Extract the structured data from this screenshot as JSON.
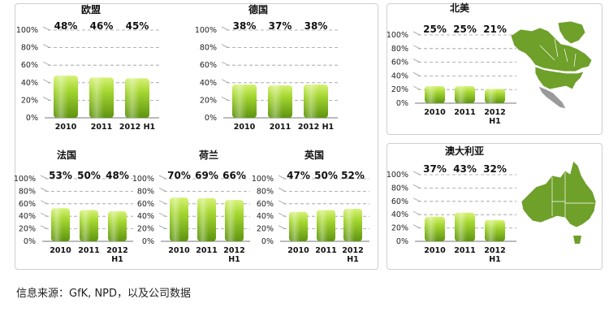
{
  "colors": {
    "bar_top": "#c8ec5a",
    "bar_mid": "#8cc21e",
    "bar_bottom": "#5a8f0c",
    "grid": "#9a9a9a",
    "map_fill": "#6ea02a",
    "map_gray": "#9a9a9a"
  },
  "chart_data": [
    {
      "type": "bar",
      "title": "欧盟",
      "categories": [
        "2010",
        "2011",
        "2012 H1"
      ],
      "values": [
        48,
        46,
        45
      ],
      "value_labels": [
        "48%",
        "46%",
        "45%"
      ],
      "yticks": [
        "0%",
        "20%",
        "40%",
        "60%",
        "80%",
        "100%"
      ],
      "ylim": [
        0,
        100
      ],
      "grid": true
    },
    {
      "type": "bar",
      "title": "德国",
      "categories": [
        "2010",
        "2011",
        "2012 H1"
      ],
      "values": [
        38,
        37,
        38
      ],
      "value_labels": [
        "38%",
        "37%",
        "38%"
      ],
      "yticks": [
        "0%",
        "20%",
        "40%",
        "60%",
        "80%",
        "100%"
      ],
      "ylim": [
        0,
        100
      ],
      "grid": true
    },
    {
      "type": "bar",
      "title": "北美",
      "categories": [
        "2010",
        "2011",
        "2012 H1"
      ],
      "values": [
        25,
        25,
        21
      ],
      "value_labels": [
        "25%",
        "25%",
        "21%"
      ],
      "yticks": [
        "0%",
        "20%",
        "40%",
        "60%",
        "80%",
        "100%"
      ],
      "ylim": [
        0,
        100
      ],
      "grid": true
    },
    {
      "type": "bar",
      "title": "法国",
      "categories": [
        "2010",
        "2011",
        "2012 H1"
      ],
      "values": [
        53,
        50,
        48
      ],
      "value_labels": [
        "53%",
        "50%",
        "48%"
      ],
      "yticks": [
        "0%",
        "20%",
        "40%",
        "60%",
        "80%",
        "100%"
      ],
      "ylim": [
        0,
        100
      ],
      "grid": true
    },
    {
      "type": "bar",
      "title": "荷兰",
      "categories": [
        "2010",
        "2011",
        "2012 H1"
      ],
      "values": [
        70,
        69,
        66
      ],
      "value_labels": [
        "70%",
        "69%",
        "66%"
      ],
      "yticks": [
        "0%",
        "20%",
        "40%",
        "60%",
        "80%",
        "100%"
      ],
      "ylim": [
        0,
        100
      ],
      "grid": true
    },
    {
      "type": "bar",
      "title": "英国",
      "categories": [
        "2010",
        "2011",
        "2012 H1"
      ],
      "values": [
        47,
        50,
        52
      ],
      "value_labels": [
        "47%",
        "50%",
        "52%"
      ],
      "yticks": [
        "0%",
        "20%",
        "40%",
        "60%",
        "80%",
        "100%"
      ],
      "ylim": [
        0,
        100
      ],
      "grid": true
    },
    {
      "type": "bar",
      "title": "澳大利亚",
      "categories": [
        "2010",
        "2011",
        "2012 H1"
      ],
      "values": [
        37,
        43,
        32
      ],
      "value_labels": [
        "37%",
        "43%",
        "32%"
      ],
      "yticks": [
        "0%",
        "20%",
        "40%",
        "60%",
        "80%",
        "100%"
      ],
      "ylim": [
        0,
        100
      ],
      "grid": true
    }
  ],
  "maps": {
    "north_america": "north-america-map-icon",
    "australia": "australia-map-icon"
  },
  "footer": {
    "source": "信息来源：GfK, NPD，以及公司数据"
  }
}
